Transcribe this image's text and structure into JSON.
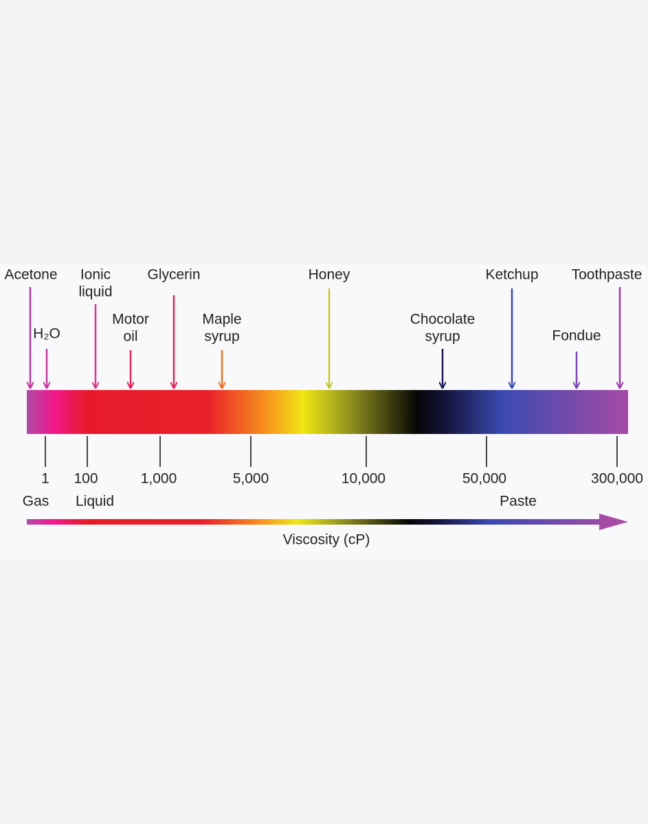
{
  "substances": [
    {
      "label": [
        "Acetone"
      ],
      "color": "#c0399e"
    },
    {
      "label": [
        "H₂O"
      ],
      "color": "#c0399e"
    },
    {
      "label": [
        "Ionic",
        "liquid"
      ],
      "color": "#d9358e"
    },
    {
      "label": [
        "Motor",
        "oil"
      ],
      "color": "#e0255a"
    },
    {
      "label": [
        "Glycerin"
      ],
      "color": "#e0255a"
    },
    {
      "label": [
        "Maple",
        "syrup"
      ],
      "color": "#f07020"
    },
    {
      "label": [
        "Honey"
      ],
      "color": "#c8c830"
    },
    {
      "label": [
        "Chocolate",
        "syrup"
      ],
      "color": "#1a1a5a"
    },
    {
      "label": [
        "Ketchup"
      ],
      "color": "#3a4ab0"
    },
    {
      "label": [
        "Fondue"
      ],
      "color": "#7a4ab0"
    },
    {
      "label": [
        "Toothpaste"
      ],
      "color": "#a03aa8"
    }
  ],
  "ticks": [
    "1",
    "100",
    "1,000",
    "5,000",
    "10,000",
    "50,000",
    "300,000"
  ],
  "phases": [
    "Gas",
    "Liquid",
    "Paste"
  ],
  "axis_title": "Viscosity (cP)"
}
